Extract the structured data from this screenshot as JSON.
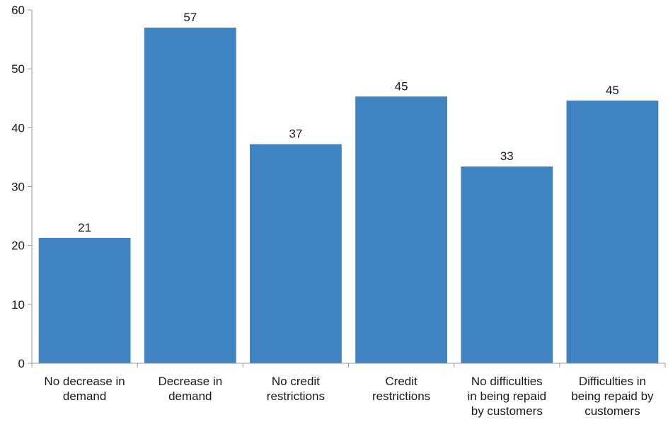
{
  "chart_data": {
    "type": "bar",
    "categories": [
      [
        "No decrease in",
        "demand"
      ],
      [
        "Decrease in",
        "demand"
      ],
      [
        "No credit",
        "restrictions"
      ],
      [
        "Credit",
        "restrictions"
      ],
      [
        "No difficulties",
        "in being repaid",
        "by customers"
      ],
      [
        "Difficulties in",
        "being repaid by",
        "customers"
      ]
    ],
    "values": [
      21.3,
      57.0,
      37.2,
      45.3,
      33.4,
      44.6
    ],
    "data_labels": [
      "21",
      "57",
      "37",
      "45",
      "33",
      "45"
    ],
    "ylim": [
      0,
      60
    ],
    "yticks": [
      0,
      10,
      20,
      30,
      40,
      50,
      60
    ],
    "title": "",
    "xlabel": "",
    "ylabel": "",
    "grid": false,
    "legend": "none",
    "bar_color": "#3f84c1",
    "axis_color": "#9a9a9a"
  }
}
